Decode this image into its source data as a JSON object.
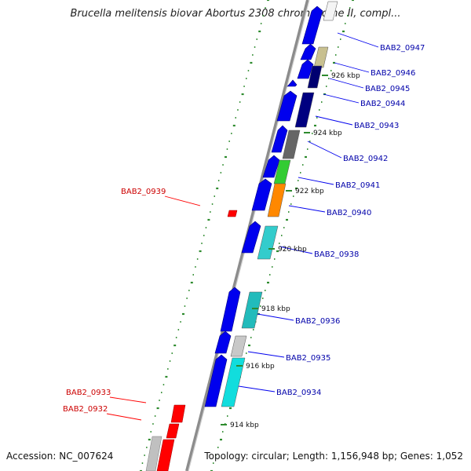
{
  "title": "Brucella melitensis biovar Abortus 2308 chromosome II, compl...",
  "accession": "Accession: NC_007624",
  "topology": "Topology: circular; Length: 1,156,948 bp; Genes: 1,052",
  "colors": {
    "forward_strand": "#0000ee",
    "reverse_strand": "#ff0000",
    "tick": "#2e8b2e",
    "backbone": "#9a9a9a"
  },
  "kbp_labels": [
    "926 kbp",
    "924 kbp",
    "922 kbp",
    "920 kbp",
    "918 kbp",
    "916 kbp",
    "914 kbp"
  ],
  "gene_labels_right": [
    "BAB2_0947",
    "BAB2_0946",
    "BAB2_0945",
    "BAB2_0944",
    "BAB2_0943",
    "BAB2_0942",
    "BAB2_0941",
    "BAB2_0940",
    "BAB2_0938",
    "BAB2_0936",
    "BAB2_0935",
    "BAB2_0934"
  ],
  "gene_labels_left": [
    "BAB2_0939",
    "BAB2_0933",
    "BAB2_0932"
  ]
}
